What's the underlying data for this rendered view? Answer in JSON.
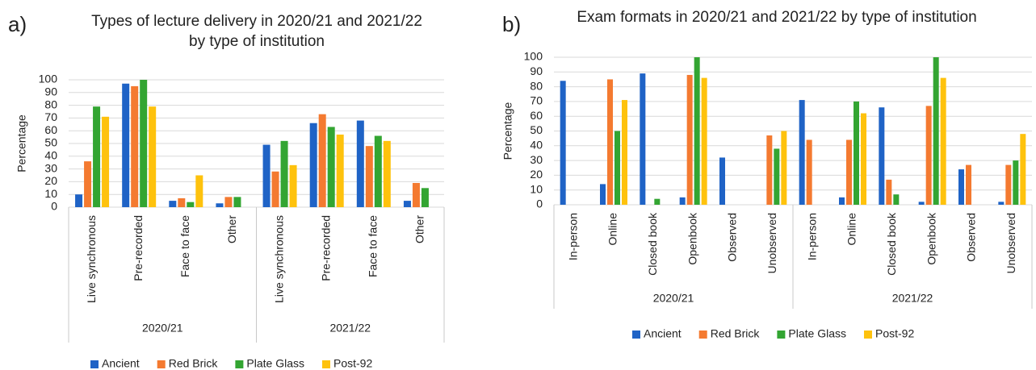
{
  "chart_data": [
    {
      "type": "bar",
      "panel": "a)",
      "title": [
        "Types of lecture delivery in 2020/21 and 2021/22",
        "by type of institution"
      ],
      "y_label": "Percentage",
      "categories": [
        "Live synchronous",
        "Pre-recorded",
        "Face to face",
        "Other",
        "Live synchronous",
        "Pre-recorded",
        "Face to face",
        "Other"
      ],
      "groups": [
        "2020/21",
        "2021/22"
      ],
      "ylim": [
        0,
        100
      ],
      "yticks": [
        0,
        10,
        20,
        30,
        40,
        50,
        60,
        70,
        80,
        90,
        100
      ],
      "grid": true,
      "series": [
        {
          "name": "Ancient",
          "color": "#1f63c6",
          "values": [
            10,
            97,
            5,
            3,
            49,
            66,
            68,
            5
          ]
        },
        {
          "name": "Red Brick",
          "color": "#f47a30",
          "values": [
            36,
            95,
            7,
            8,
            28,
            73,
            48,
            19
          ]
        },
        {
          "name": "Plate Glass",
          "color": "#33a532",
          "values": [
            79,
            100,
            4,
            8,
            52,
            63,
            56,
            15
          ]
        },
        {
          "name": "Post-92",
          "color": "#fec20d",
          "values": [
            71,
            79,
            25,
            0,
            33,
            57,
            52,
            0
          ]
        }
      ]
    },
    {
      "type": "bar",
      "panel": "b)",
      "title": [
        "Exam formats in 2020/21 and 2021/22 by type of institution"
      ],
      "y_label": "Percentage",
      "categories": [
        "In-person",
        "Online",
        "Closed book",
        "Openbook",
        "Observed",
        "Unobserved",
        "In-person",
        "Online",
        "Closed book",
        "Openbook",
        "Observed",
        "Unobserved"
      ],
      "groups": [
        "2020/21",
        "2021/22"
      ],
      "ylim": [
        0,
        100
      ],
      "yticks": [
        0,
        10,
        20,
        30,
        40,
        50,
        60,
        70,
        80,
        90,
        100
      ],
      "grid": true,
      "series": [
        {
          "name": "Ancient",
          "color": "#1f63c6",
          "values": [
            84,
            14,
            89,
            5,
            32,
            0,
            71,
            5,
            66,
            2,
            24,
            2
          ]
        },
        {
          "name": "Red Brick",
          "color": "#f47a30",
          "values": [
            0,
            85,
            0,
            88,
            0,
            47,
            44,
            44,
            17,
            67,
            27,
            27
          ]
        },
        {
          "name": "Plate Glass",
          "color": "#33a532",
          "values": [
            0,
            50,
            4,
            100,
            0,
            38,
            0,
            70,
            7,
            100,
            0,
            30
          ]
        },
        {
          "name": "Post-92",
          "color": "#fec20d",
          "values": [
            0,
            71,
            0,
            86,
            0,
            50,
            0,
            62,
            0,
            86,
            0,
            48
          ]
        }
      ]
    }
  ]
}
